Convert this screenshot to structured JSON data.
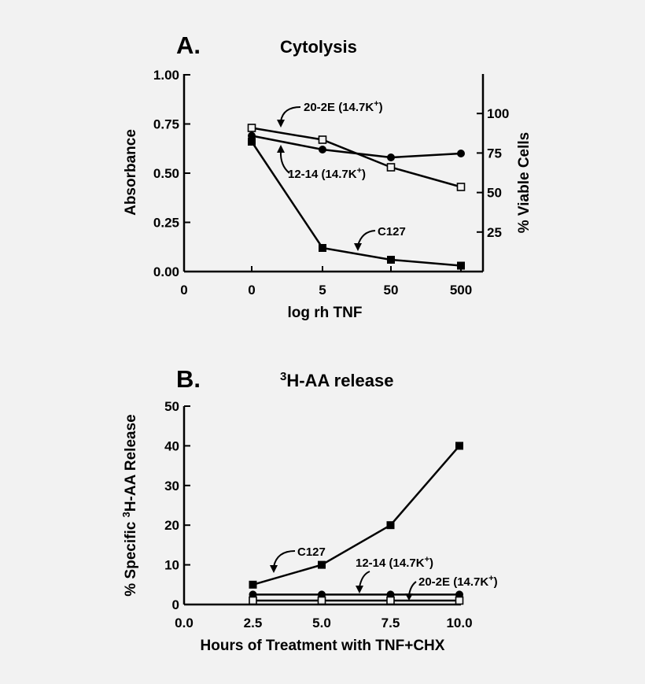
{
  "chart_data": [
    {
      "type": "line",
      "panel_label": "A.",
      "title": "Cytolysis",
      "xlabel": "log rh TNF",
      "ylabel": "Absorbance",
      "y2label": "% Viable Cells",
      "categories": [
        "0",
        "0",
        "5",
        "50",
        "500"
      ],
      "ylim": [
        0,
        1.0
      ],
      "yticks": [
        "0.00",
        "0.25",
        "0.50",
        "0.75",
        "1.00"
      ],
      "y2ticks": [
        "25",
        "50",
        "75",
        "100"
      ],
      "series": [
        {
          "name": "20-2E (14.7K+)",
          "marker": "open-square",
          "points": [
            [
              1,
              0.73
            ],
            [
              2,
              0.67
            ],
            [
              3,
              0.53
            ],
            [
              4,
              0.43
            ]
          ]
        },
        {
          "name": "12-14 (14.7K+)",
          "marker": "filled-circle",
          "points": [
            [
              1,
              0.69
            ],
            [
              2,
              0.62
            ],
            [
              3,
              0.58
            ],
            [
              4,
              0.6
            ]
          ]
        },
        {
          "name": "C127",
          "marker": "filled-square",
          "points": [
            [
              1,
              0.66
            ],
            [
              2,
              0.12
            ],
            [
              3,
              0.06
            ],
            [
              4,
              0.03
            ]
          ]
        }
      ],
      "annotations": [
        {
          "text": "20-2E (14.7K",
          "sup": "+",
          "close": ")",
          "target": "20-2E (14.7K+)"
        },
        {
          "text": "12-14 (14.7K",
          "sup": "+",
          "close": ")",
          "target": "12-14 (14.7K+)"
        },
        {
          "text": "C127",
          "target": "C127"
        }
      ]
    },
    {
      "type": "line",
      "panel_label": "B.",
      "title_sup": "3",
      "title": "H-AA release",
      "xlabel": "Hours of Treatment with TNF+CHX",
      "ylabel_pre": "% Specific ",
      "ylabel_sup": "3",
      "ylabel_post": "H-AA Release",
      "xlim": [
        0,
        10
      ],
      "ylim": [
        0,
        50
      ],
      "xticks": [
        "0.0",
        "2.5",
        "5.0",
        "7.5",
        "10.0"
      ],
      "yticks": [
        "0",
        "10",
        "20",
        "30",
        "40",
        "50"
      ],
      "series": [
        {
          "name": "C127",
          "marker": "filled-square",
          "points": [
            [
              2.5,
              5
            ],
            [
              5.0,
              10
            ],
            [
              7.5,
              20
            ],
            [
              10.0,
              40
            ]
          ]
        },
        {
          "name": "12-14 (14.7K+)",
          "marker": "filled-circle",
          "points": [
            [
              2.5,
              2.5
            ],
            [
              5.0,
              2.5
            ],
            [
              7.5,
              2.5
            ],
            [
              10.0,
              2.5
            ]
          ]
        },
        {
          "name": "20-2E (14.7K+)",
          "marker": "open-square",
          "points": [
            [
              2.5,
              1
            ],
            [
              5.0,
              1
            ],
            [
              7.5,
              1
            ],
            [
              10.0,
              1
            ]
          ]
        }
      ],
      "annotations": [
        {
          "text": "C127",
          "target": "C127"
        },
        {
          "text": "12-14 (14.7K",
          "sup": "+",
          "close": ")",
          "target": "12-14 (14.7K+)"
        },
        {
          "text": "20-2E (14.7K",
          "sup": "+",
          "close": ")",
          "target": "20-2E (14.7K+)"
        }
      ]
    }
  ]
}
